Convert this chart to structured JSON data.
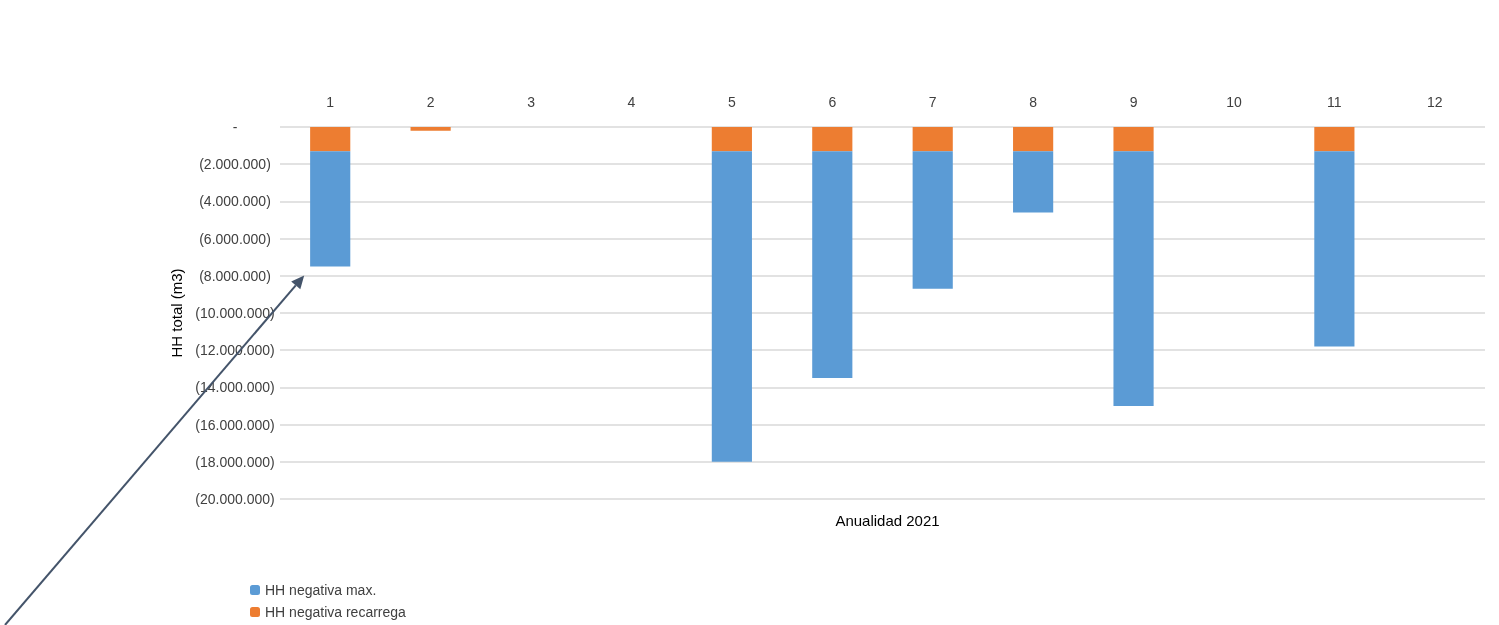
{
  "chart_data": {
    "type": "bar",
    "stacked": true,
    "ylabel": "HH total (m3)",
    "xlabel": "Anualidad 2021",
    "categories": [
      "1",
      "2",
      "3",
      "4",
      "5",
      "6",
      "7",
      "8",
      "9",
      "10",
      "11",
      "12"
    ],
    "series": [
      {
        "name": "HH negativa recarrega",
        "color": "#ed7d31",
        "values": [
          -1300000,
          -200000,
          null,
          null,
          -1300000,
          -1300000,
          -1300000,
          -1300000,
          -1300000,
          null,
          -1300000,
          null
        ]
      },
      {
        "name": "HH negativa max.",
        "color": "#5b9bd5",
        "values": [
          -6200000,
          null,
          null,
          null,
          -16700000,
          -12200000,
          -7400000,
          -3300000,
          -13700000,
          null,
          -10500000,
          null
        ]
      }
    ],
    "ylim": [
      -20000000,
      0
    ],
    "yticks": [
      {
        "value": 0,
        "label": "-"
      },
      {
        "value": -2000000,
        "label": "(2.000.000)"
      },
      {
        "value": -4000000,
        "label": "(4.000.000)"
      },
      {
        "value": -6000000,
        "label": "(6.000.000)"
      },
      {
        "value": -8000000,
        "label": "(8.000.000)"
      },
      {
        "value": -10000000,
        "label": "(10.000.000)"
      },
      {
        "value": -12000000,
        "label": "(12.000.000)"
      },
      {
        "value": -14000000,
        "label": "(14.000.000)"
      },
      {
        "value": -16000000,
        "label": "(16.000.000)"
      },
      {
        "value": -18000000,
        "label": "(18.000.000)"
      },
      {
        "value": -20000000,
        "label": "(20.000.000)"
      }
    ],
    "grid": "y",
    "legend": "bottom left"
  }
}
